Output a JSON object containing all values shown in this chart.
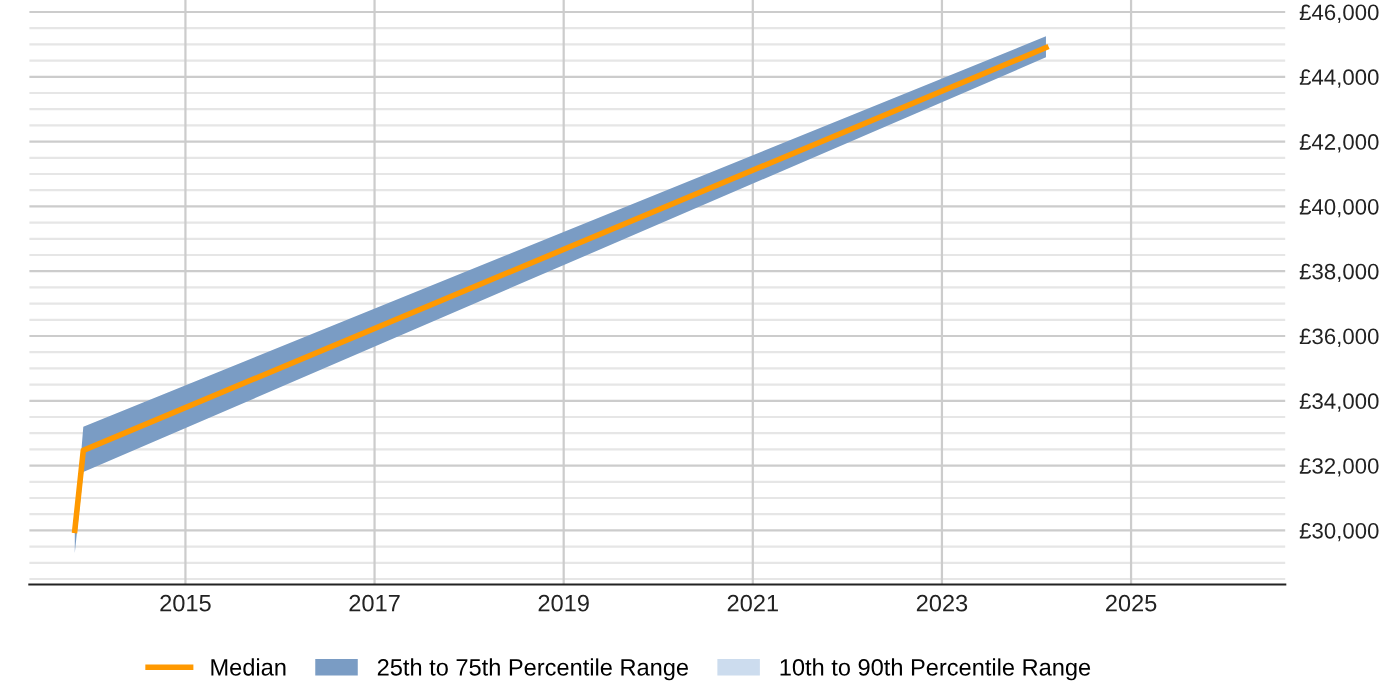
{
  "chart_data": {
    "type": "line",
    "x": [
      2013.83,
      2013.92,
      2024.1
    ],
    "series": [
      {
        "name": "Median",
        "color": "#ff9900",
        "values": [
          30000,
          32470,
          44900
        ]
      },
      {
        "name": "25th to 75th Percentile Range",
        "type": "area",
        "color": "#7a9cc4",
        "values": [
          null,
          null,
          null
        ],
        "lower": [
          29300,
          31800,
          44600
        ],
        "upper": [
          30000,
          33200,
          45250
        ]
      },
      {
        "name": "10th to 90th Percentile Range",
        "type": "area",
        "color": "#ccdcee",
        "values": [
          null,
          null,
          null
        ],
        "lower": [
          null,
          null,
          null
        ],
        "upper": [
          null,
          null,
          null
        ]
      }
    ],
    "xlim": [
      2013.35,
      2026.63
    ],
    "xticks": [
      2015,
      2017,
      2019,
      2021,
      2023,
      2025
    ],
    "ylim": [
      28330,
      46370
    ],
    "yticks": [
      {
        "value": 28500,
        "label": null
      },
      {
        "value": 29000,
        "label": null
      },
      {
        "value": 29500,
        "label": null
      },
      {
        "value": 30000,
        "label": "£30,000"
      },
      {
        "value": 30500,
        "label": null
      },
      {
        "value": 31000,
        "label": null
      },
      {
        "value": 31500,
        "label": null
      },
      {
        "value": 32000,
        "label": "£32,000"
      },
      {
        "value": 32500,
        "label": null
      },
      {
        "value": 33000,
        "label": null
      },
      {
        "value": 33500,
        "label": null
      },
      {
        "value": 34000,
        "label": "£34,000"
      },
      {
        "value": 34500,
        "label": null
      },
      {
        "value": 35000,
        "label": null
      },
      {
        "value": 35500,
        "label": null
      },
      {
        "value": 36000,
        "label": "£36,000"
      },
      {
        "value": 36500,
        "label": null
      },
      {
        "value": 37000,
        "label": null
      },
      {
        "value": 37500,
        "label": null
      },
      {
        "value": 38000,
        "label": "£38,000"
      },
      {
        "value": 38500,
        "label": null
      },
      {
        "value": 39000,
        "label": null
      },
      {
        "value": 39500,
        "label": null
      },
      {
        "value": 40000,
        "label": "£40,000"
      },
      {
        "value": 40500,
        "label": null
      },
      {
        "value": 41000,
        "label": null
      },
      {
        "value": 41500,
        "label": null
      },
      {
        "value": 42000,
        "label": "£42,000"
      },
      {
        "value": 42500,
        "label": null
      },
      {
        "value": 43000,
        "label": null
      },
      {
        "value": 43500,
        "label": null
      },
      {
        "value": 44000,
        "label": "£44,000"
      },
      {
        "value": 44500,
        "label": null
      },
      {
        "value": 45000,
        "label": null
      },
      {
        "value": 45500,
        "label": null
      },
      {
        "value": 46000,
        "label": "£46,000"
      }
    ],
    "grid": true,
    "legend": "bottom",
    "marker": "none",
    "line_style": "solid"
  }
}
